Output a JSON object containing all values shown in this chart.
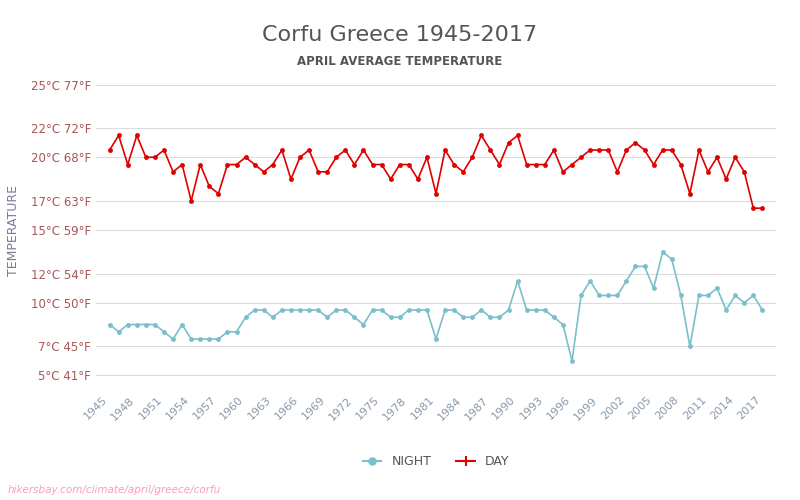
{
  "title": "Corfu Greece 1945-2017",
  "subtitle": "APRIL AVERAGE TEMPERATURE",
  "ylabel": "TEMPERATURE",
  "url_text": "hikersbay.com/climate/april/greece/corfu",
  "years": [
    1945,
    1946,
    1947,
    1948,
    1949,
    1950,
    1951,
    1952,
    1953,
    1954,
    1955,
    1956,
    1957,
    1958,
    1959,
    1960,
    1961,
    1962,
    1963,
    1964,
    1965,
    1966,
    1967,
    1968,
    1969,
    1970,
    1971,
    1972,
    1973,
    1974,
    1975,
    1976,
    1977,
    1978,
    1979,
    1980,
    1981,
    1982,
    1983,
    1984,
    1985,
    1986,
    1987,
    1988,
    1989,
    1990,
    1991,
    1992,
    1993,
    1994,
    1995,
    1996,
    1997,
    1998,
    1999,
    2000,
    2001,
    2002,
    2003,
    2004,
    2005,
    2006,
    2007,
    2008,
    2009,
    2010,
    2011,
    2012,
    2013,
    2014,
    2015,
    2016,
    2017
  ],
  "day_temps": [
    20.5,
    21.5,
    19.5,
    21.5,
    20.0,
    20.0,
    20.5,
    19.0,
    19.5,
    17.0,
    19.5,
    18.0,
    17.5,
    19.5,
    19.5,
    20.0,
    19.5,
    19.0,
    19.5,
    20.5,
    18.5,
    20.0,
    20.5,
    19.0,
    19.0,
    20.0,
    20.5,
    19.5,
    20.5,
    19.5,
    19.5,
    18.5,
    19.5,
    19.5,
    18.5,
    20.0,
    17.5,
    20.5,
    19.5,
    19.0,
    20.0,
    21.5,
    20.5,
    19.5,
    21.0,
    21.5,
    19.5,
    19.5,
    19.5,
    20.5,
    19.0,
    19.5,
    20.0,
    20.5,
    20.5,
    20.5,
    19.0,
    20.5,
    21.0,
    20.5,
    19.5,
    20.5,
    20.5,
    19.5,
    17.5,
    20.5,
    19.0,
    20.0,
    18.5,
    20.0,
    19.0,
    16.5,
    16.5
  ],
  "night_temps": [
    8.5,
    8.0,
    8.5,
    8.5,
    8.5,
    8.5,
    8.0,
    7.5,
    8.5,
    7.5,
    7.5,
    7.5,
    7.5,
    8.0,
    8.0,
    9.0,
    9.5,
    9.5,
    9.0,
    9.5,
    9.5,
    9.5,
    9.5,
    9.5,
    9.0,
    9.5,
    9.5,
    9.0,
    8.5,
    9.5,
    9.5,
    9.0,
    9.0,
    9.5,
    9.5,
    9.5,
    7.5,
    9.5,
    9.5,
    9.0,
    9.0,
    9.5,
    9.0,
    9.0,
    9.5,
    11.5,
    9.5,
    9.5,
    9.5,
    9.0,
    8.5,
    6.0,
    10.5,
    11.5,
    10.5,
    10.5,
    10.5,
    11.5,
    12.5,
    12.5,
    11.0,
    13.5,
    13.0,
    10.5,
    7.0,
    10.5,
    10.5,
    11.0,
    9.5,
    10.5,
    10.0,
    10.5,
    9.5
  ],
  "day_color": "#e00000",
  "night_color": "#7bbfcc",
  "title_color": "#555555",
  "subtitle_color": "#555555",
  "ylabel_color": "#7a7a9a",
  "tick_color": "#aa5555",
  "url_color": "#ff99bb",
  "grid_color": "#dddddd",
  "bg_color": "#ffffff",
  "yticks_c": [
    5,
    7,
    10,
    12,
    15,
    17,
    20,
    22,
    25
  ],
  "yticks_f": [
    41,
    45,
    50,
    54,
    59,
    63,
    68,
    72,
    77
  ],
  "ylim": [
    4,
    26
  ],
  "xtick_years": [
    1945,
    1948,
    1951,
    1954,
    1957,
    1960,
    1963,
    1966,
    1969,
    1972,
    1975,
    1978,
    1981,
    1984,
    1987,
    1990,
    1993,
    1996,
    1999,
    2002,
    2005,
    2008,
    2011,
    2014,
    2017
  ]
}
